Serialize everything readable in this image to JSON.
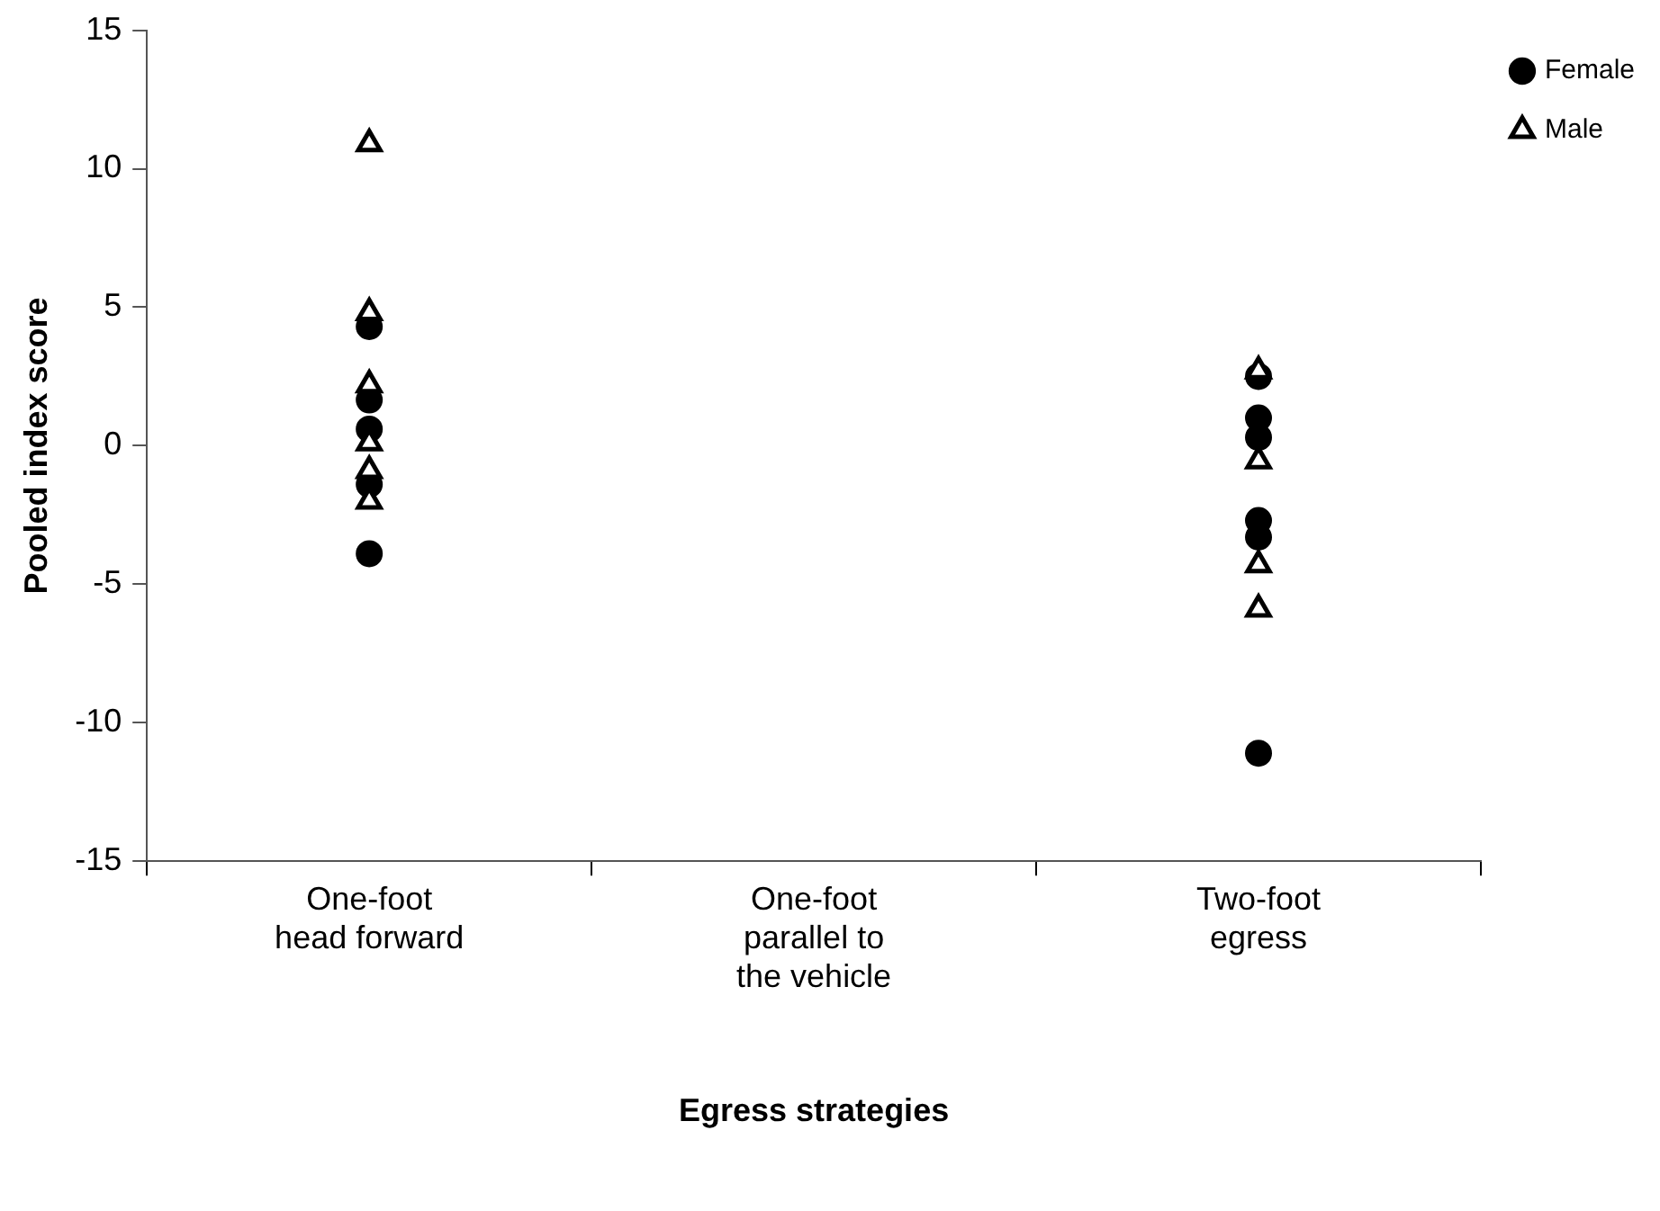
{
  "chart_data": {
    "type": "scatter",
    "xlabel": "Egress strategies",
    "ylabel": "Pooled index score",
    "categories": [
      "One-foot head forward",
      "One-foot parallel to the vehicle",
      "Two-foot egress"
    ],
    "ylim": [
      -15,
      15
    ],
    "yticks": [
      -15,
      -10,
      -5,
      0,
      5,
      10,
      15
    ],
    "grid": false,
    "legend": "top right",
    "series": [
      {
        "name": "Female",
        "color": "#000000",
        "marker": "circle",
        "x": [
          "One-foot head forward",
          "One-foot head forward",
          "One-foot head forward",
          "One-foot head forward",
          "One-foot head forward",
          "Two-foot egress",
          "Two-foot egress",
          "Two-foot egress",
          "Two-foot egress",
          "Two-foot egress",
          "Two-foot egress"
        ],
        "values": [
          4.3,
          1.65,
          0.6,
          -1.4,
          -3.9,
          2.5,
          1.0,
          0.3,
          -2.7,
          -3.3,
          -11.1
        ]
      },
      {
        "name": "Male",
        "color": "#000000",
        "marker": "triangle",
        "x": [
          "One-foot head forward",
          "One-foot head forward",
          "One-foot head forward",
          "One-foot head forward",
          "One-foot head forward",
          "One-foot head forward",
          "Two-foot egress",
          "Two-foot egress",
          "Two-foot egress",
          "Two-foot egress"
        ],
        "values": [
          10.9,
          4.8,
          2.2,
          0.1,
          -0.9,
          -2.0,
          2.7,
          -0.55,
          -4.3,
          -5.9
        ]
      }
    ]
  }
}
